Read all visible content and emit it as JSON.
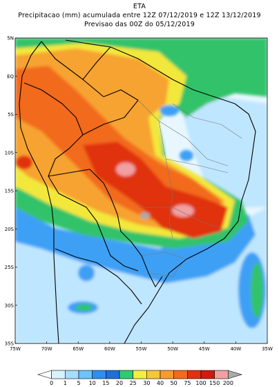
{
  "header": {
    "model": "ETA",
    "line1": "Precipitacao (mm) acumulada entre 12Z 07/12/2019 e 12Z 13/12/2019",
    "line2": "Previsao das 00Z do 05/12/2019"
  },
  "map": {
    "lon_range": [
      -75,
      -35
    ],
    "lat_range": [
      -35,
      5
    ],
    "lat_ticks": [
      "5N",
      "EQ",
      "5S",
      "10S",
      "15S",
      "20S",
      "25S",
      "30S",
      "35S"
    ],
    "lon_ticks": [
      "75W",
      "70W",
      "65W",
      "60W",
      "55W",
      "50W",
      "45W",
      "40W",
      "35W"
    ]
  },
  "colorbar": {
    "levels": [
      "0",
      "1",
      "5",
      "10",
      "15",
      "20",
      "25",
      "30",
      "40",
      "50",
      "75",
      "100",
      "150",
      "200"
    ],
    "colors": [
      "#ffffff",
      "#d9f2ff",
      "#a6dcff",
      "#6cc3ff",
      "#2d8ff0",
      "#1e6fd8",
      "#2ecc71",
      "#f6ee3c",
      "#f7c63a",
      "#f89a2e",
      "#f26b1e",
      "#e3300f",
      "#d21a10",
      "#f0a0a0",
      "#aaaaaa"
    ]
  }
}
